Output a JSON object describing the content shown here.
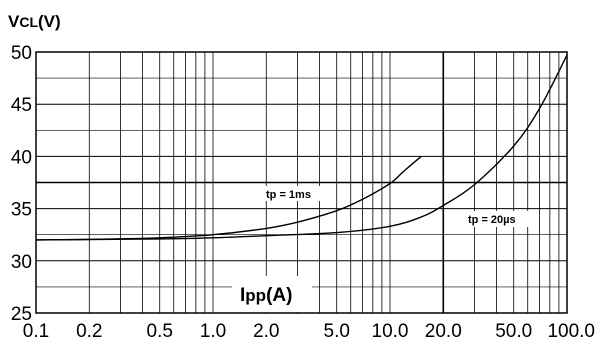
{
  "chart_data": {
    "type": "line",
    "title_main": "V",
    "title_sub": "CL",
    "title_unit": "(V)",
    "xlabel_main": "I",
    "xlabel_sub": "pp",
    "xlabel_unit": "(A)",
    "x_scale": "log",
    "xlim": [
      0.1,
      100
    ],
    "ylim": [
      25,
      50
    ],
    "x_ticks": [
      0.1,
      0.2,
      0.5,
      1.0,
      2.0,
      5.0,
      10.0,
      20.0,
      50.0,
      100.0
    ],
    "x_tick_labels": [
      "0.1",
      "0.2",
      "0.5",
      "1.0",
      "2.0",
      "5.0",
      "10.0",
      "20.0",
      "50.0",
      "100.0"
    ],
    "y_ticks": [
      25,
      30,
      35,
      40,
      45,
      50
    ],
    "y_tick_labels": [
      "25",
      "30",
      "35",
      "40",
      "45",
      "50"
    ],
    "grid": true,
    "reference_lines": {
      "horizontal_y": 37.5,
      "vertical_x": 20
    },
    "series": [
      {
        "name": "tp = 1ms",
        "x": [
          0.1,
          0.2,
          0.5,
          1.0,
          2.0,
          3.0,
          5.0,
          7.0,
          10.0,
          12.0,
          15.0
        ],
        "y": [
          32.0,
          32.05,
          32.2,
          32.5,
          33.1,
          33.7,
          34.8,
          35.9,
          37.4,
          38.6,
          40.0
        ]
      },
      {
        "name": "tp = 20µs",
        "x": [
          0.1,
          0.5,
          1.0,
          2.0,
          5.0,
          10.0,
          15.0,
          20.0,
          30.0,
          50.0,
          70.0,
          100.0
        ],
        "y": [
          32.0,
          32.1,
          32.2,
          32.4,
          32.7,
          33.3,
          34.2,
          35.3,
          37.3,
          41.0,
          44.6,
          49.7
        ]
      }
    ]
  }
}
